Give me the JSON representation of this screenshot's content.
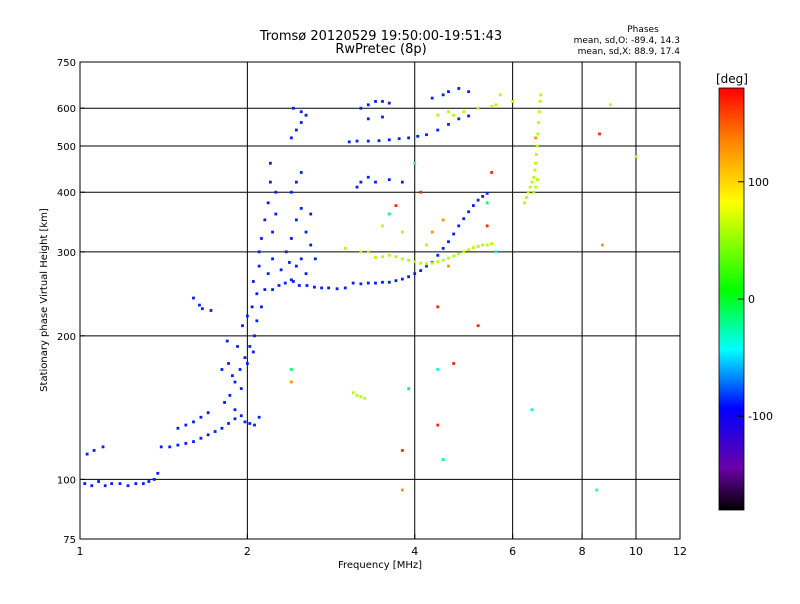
{
  "chart_data": {
    "type": "scatter",
    "title": "Tromsø 20120529 19:50:00-19:51:43",
    "subtitle": "RwPretec (8p)",
    "phases": {
      "heading": "Phases",
      "line_o": "mean, sd,O: -89.4, 14.3",
      "line_x": "mean, sd,X: 88.9, 17.4"
    },
    "xlabel": "Frequency [MHz]",
    "ylabel": "Stationary phase Virtual Height [km]",
    "xscale": "log",
    "yscale": "log",
    "xlim": [
      1,
      12
    ],
    "ylim": [
      75,
      750
    ],
    "xticks": [
      1,
      2,
      4,
      6,
      8,
      10,
      12
    ],
    "yticks": [
      75,
      100,
      200,
      300,
      400,
      500,
      600,
      750
    ],
    "grid": true,
    "colorbar": {
      "label": "[deg]",
      "min": -180,
      "max": 180,
      "ticks": [
        100,
        0,
        -100
      ]
    },
    "series": [
      {
        "phase_deg": -90,
        "points": [
          [
            1.02,
            98
          ],
          [
            1.05,
            97
          ],
          [
            1.08,
            99
          ],
          [
            1.11,
            97
          ],
          [
            1.14,
            98
          ],
          [
            1.18,
            98
          ],
          [
            1.22,
            97
          ],
          [
            1.26,
            98
          ],
          [
            1.3,
            98
          ],
          [
            1.33,
            99
          ],
          [
            1.36,
            100
          ],
          [
            1.38,
            103
          ],
          [
            1.03,
            113
          ],
          [
            1.06,
            115
          ],
          [
            1.1,
            117
          ],
          [
            1.4,
            117
          ],
          [
            1.45,
            117
          ],
          [
            1.5,
            118
          ],
          [
            1.55,
            119
          ],
          [
            1.6,
            120
          ],
          [
            1.65,
            122
          ],
          [
            1.7,
            124
          ],
          [
            1.75,
            126
          ],
          [
            1.8,
            128
          ],
          [
            1.85,
            131
          ],
          [
            1.9,
            134
          ],
          [
            1.95,
            136
          ],
          [
            1.98,
            132
          ],
          [
            2.02,
            131
          ],
          [
            2.06,
            130
          ],
          [
            2.1,
            135
          ],
          [
            1.5,
            128
          ],
          [
            1.55,
            130
          ],
          [
            1.6,
            132
          ],
          [
            1.65,
            135
          ],
          [
            1.7,
            138
          ],
          [
            1.82,
            145
          ],
          [
            1.86,
            150
          ],
          [
            1.9,
            160
          ],
          [
            1.94,
            170
          ],
          [
            1.98,
            180
          ],
          [
            2.02,
            190
          ],
          [
            2.06,
            200
          ],
          [
            1.88,
            165
          ],
          [
            1.92,
            190
          ],
          [
            1.96,
            210
          ],
          [
            2.0,
            220
          ],
          [
            2.04,
            230
          ],
          [
            2.08,
            245
          ],
          [
            1.9,
            140
          ],
          [
            1.95,
            155
          ],
          [
            2.0,
            175
          ],
          [
            2.05,
            185
          ],
          [
            1.85,
            175
          ],
          [
            1.8,
            170
          ],
          [
            1.84,
            195
          ],
          [
            2.05,
            260
          ],
          [
            2.1,
            280
          ],
          [
            2.1,
            300
          ],
          [
            2.12,
            320
          ],
          [
            2.15,
            350
          ],
          [
            2.18,
            380
          ],
          [
            2.2,
            420
          ],
          [
            2.2,
            460
          ],
          [
            2.15,
            250
          ],
          [
            2.18,
            270
          ],
          [
            2.22,
            290
          ],
          [
            2.22,
            330
          ],
          [
            2.25,
            360
          ],
          [
            2.25,
            400
          ],
          [
            2.12,
            230
          ],
          [
            2.08,
            215
          ],
          [
            1.6,
            240
          ],
          [
            1.66,
            228
          ],
          [
            1.72,
            226
          ],
          [
            1.64,
            232
          ],
          [
            2.22,
            250
          ],
          [
            2.28,
            255
          ],
          [
            2.34,
            258
          ],
          [
            2.4,
            262
          ],
          [
            2.48,
            255
          ],
          [
            2.56,
            255
          ],
          [
            2.64,
            253
          ],
          [
            2.72,
            252
          ],
          [
            2.8,
            252
          ],
          [
            2.9,
            251
          ],
          [
            3.0,
            252
          ],
          [
            2.35,
            300
          ],
          [
            2.4,
            320
          ],
          [
            2.45,
            350
          ],
          [
            2.5,
            370
          ],
          [
            2.4,
            400
          ],
          [
            2.45,
            420
          ],
          [
            2.5,
            440
          ],
          [
            2.55,
            330
          ],
          [
            2.6,
            310
          ],
          [
            2.65,
            290
          ],
          [
            2.45,
            280
          ],
          [
            2.5,
            290
          ],
          [
            2.55,
            270
          ],
          [
            2.6,
            360
          ],
          [
            2.42,
            260
          ],
          [
            2.3,
            275
          ],
          [
            2.38,
            285
          ],
          [
            3.1,
            258
          ],
          [
            3.2,
            257
          ],
          [
            3.3,
            258
          ],
          [
            3.4,
            258
          ],
          [
            3.5,
            259
          ],
          [
            3.6,
            259
          ],
          [
            3.7,
            261
          ],
          [
            3.8,
            263
          ],
          [
            3.9,
            266
          ],
          [
            4.0,
            270
          ],
          [
            4.1,
            274
          ],
          [
            4.2,
            280
          ],
          [
            4.3,
            285
          ],
          [
            4.4,
            295
          ],
          [
            4.5,
            305
          ],
          [
            4.6,
            315
          ],
          [
            4.7,
            327
          ],
          [
            4.8,
            340
          ],
          [
            4.9,
            352
          ],
          [
            5.0,
            364
          ],
          [
            5.1,
            375
          ],
          [
            5.2,
            385
          ],
          [
            5.3,
            392
          ],
          [
            5.4,
            398
          ],
          [
            3.05,
            510
          ],
          [
            3.15,
            512
          ],
          [
            3.3,
            512
          ],
          [
            3.45,
            513
          ],
          [
            3.6,
            515
          ],
          [
            3.75,
            518
          ],
          [
            3.9,
            520
          ],
          [
            4.05,
            524
          ],
          [
            4.2,
            528
          ],
          [
            4.4,
            540
          ],
          [
            4.6,
            555
          ],
          [
            4.8,
            570
          ],
          [
            5.0,
            578
          ],
          [
            2.4,
            520
          ],
          [
            2.45,
            540
          ],
          [
            2.5,
            560
          ],
          [
            2.55,
            580
          ],
          [
            2.5,
            590
          ],
          [
            2.42,
            600
          ],
          [
            3.2,
            600
          ],
          [
            3.3,
            610
          ],
          [
            3.4,
            620
          ],
          [
            3.5,
            620
          ],
          [
            3.6,
            615
          ],
          [
            3.3,
            570
          ],
          [
            3.5,
            575
          ],
          [
            4.3,
            630
          ],
          [
            4.5,
            640
          ],
          [
            4.6,
            650
          ],
          [
            4.8,
            660
          ],
          [
            5.0,
            650
          ],
          [
            3.2,
            420
          ],
          [
            3.4,
            420
          ],
          [
            3.6,
            425
          ],
          [
            3.8,
            420
          ],
          [
            3.15,
            410
          ],
          [
            3.3,
            430
          ]
        ]
      },
      {
        "phase_deg": 90,
        "points": [
          [
            3.6,
            295
          ],
          [
            3.7,
            293
          ],
          [
            3.8,
            290
          ],
          [
            3.9,
            288
          ],
          [
            4.0,
            286
          ],
          [
            4.1,
            284
          ],
          [
            4.2,
            283
          ],
          [
            4.3,
            284
          ],
          [
            4.4,
            286
          ],
          [
            4.5,
            288
          ],
          [
            4.6,
            291
          ],
          [
            4.7,
            294
          ],
          [
            4.8,
            297
          ],
          [
            4.9,
            300
          ],
          [
            5.0,
            303
          ],
          [
            5.1,
            306
          ],
          [
            5.2,
            308
          ],
          [
            5.3,
            310
          ],
          [
            5.4,
            310
          ],
          [
            5.5,
            312
          ],
          [
            3.5,
            293
          ],
          [
            3.4,
            292
          ],
          [
            3.0,
            305
          ],
          [
            3.2,
            300
          ],
          [
            3.3,
            300
          ],
          [
            6.3,
            380
          ],
          [
            6.35,
            390
          ],
          [
            6.4,
            400
          ],
          [
            6.45,
            410
          ],
          [
            6.5,
            420
          ],
          [
            6.55,
            430
          ],
          [
            6.58,
            445
          ],
          [
            6.6,
            460
          ],
          [
            6.62,
            480
          ],
          [
            6.64,
            500
          ],
          [
            6.66,
            530
          ],
          [
            6.68,
            560
          ],
          [
            6.7,
            590
          ],
          [
            6.72,
            620
          ],
          [
            6.74,
            640
          ],
          [
            6.55,
            400
          ],
          [
            6.6,
            410
          ],
          [
            6.65,
            425
          ],
          [
            3.1,
            152
          ],
          [
            3.15,
            150
          ],
          [
            3.2,
            149
          ],
          [
            3.25,
            148
          ],
          [
            4.7,
            580
          ],
          [
            4.9,
            590
          ],
          [
            5.2,
            600
          ],
          [
            5.5,
            605
          ],
          [
            5.6,
            610
          ],
          [
            4.4,
            580
          ],
          [
            4.6,
            590
          ],
          [
            5.7,
            640
          ],
          [
            6.0,
            620
          ],
          [
            9.0,
            610
          ],
          [
            10.0,
            475
          ],
          [
            3.5,
            340
          ],
          [
            3.8,
            330
          ],
          [
            4.2,
            310
          ]
        ]
      },
      {
        "phase_deg": 170,
        "points": [
          [
            5.4,
            340
          ],
          [
            4.4,
            230
          ],
          [
            3.7,
            375
          ],
          [
            4.7,
            175
          ],
          [
            4.4,
            130
          ],
          [
            5.5,
            440
          ],
          [
            8.6,
            530
          ],
          [
            3.8,
            115
          ],
          [
            5.2,
            210
          ],
          [
            4.1,
            400
          ]
        ]
      },
      {
        "phase_deg": 140,
        "points": [
          [
            4.3,
            330
          ],
          [
            2.4,
            160
          ],
          [
            3.8,
            95
          ],
          [
            4.5,
            350
          ],
          [
            6.6,
            520
          ],
          [
            8.7,
            310
          ],
          [
            4.6,
            280
          ]
        ]
      },
      {
        "phase_deg": 10,
        "points": [
          [
            2.4,
            170
          ],
          [
            3.6,
            360
          ],
          [
            5.4,
            380
          ],
          [
            3.9,
            155
          ],
          [
            4.5,
            110
          ]
        ]
      },
      {
        "phase_deg": -20,
        "points": [
          [
            4.4,
            170
          ],
          [
            5.6,
            300
          ],
          [
            6.5,
            140
          ],
          [
            8.5,
            95
          ],
          [
            4.0,
            460
          ]
        ]
      }
    ]
  }
}
